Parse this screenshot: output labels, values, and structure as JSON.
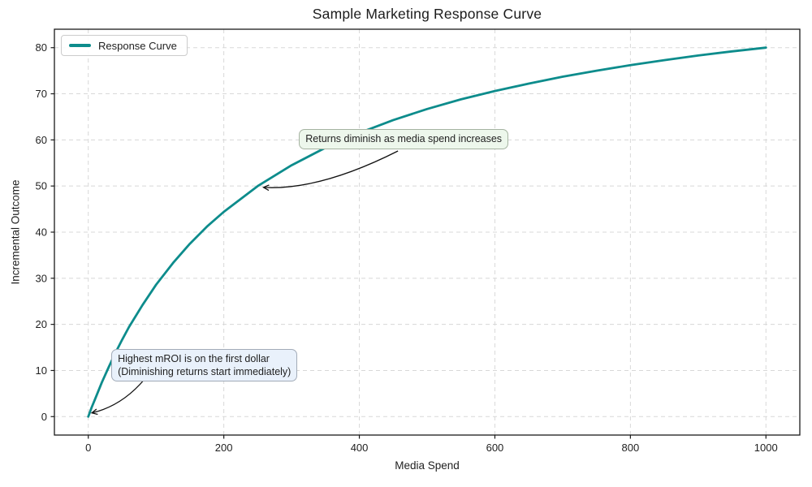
{
  "chart_data": {
    "type": "line",
    "title": "Sample Marketing Response Curve",
    "xlabel": "Media Spend",
    "ylabel": "Incremental Outcome",
    "x_ticks": [
      0,
      200,
      400,
      600,
      800,
      1000
    ],
    "y_ticks": [
      0,
      10,
      20,
      30,
      40,
      50,
      60,
      70,
      80
    ],
    "xlim": [
      -50,
      1050
    ],
    "ylim": [
      -4,
      84
    ],
    "grid": {
      "on": true,
      "style": "dashed",
      "color": "#d8d8d8"
    },
    "legend": {
      "position": "upper-left",
      "entries": [
        {
          "label": "Response Curve",
          "color": "#0d8c8c"
        }
      ]
    },
    "series": [
      {
        "name": "Response Curve",
        "color": "#0d8c8c",
        "x": [
          0,
          5,
          10,
          20,
          30,
          40,
          50,
          60,
          80,
          100,
          125,
          150,
          175,
          200,
          250,
          300,
          350,
          400,
          450,
          500,
          550,
          600,
          650,
          700,
          750,
          800,
          850,
          900,
          950,
          1000
        ],
        "y": [
          0,
          2.0,
          3.8,
          7.4,
          10.7,
          13.8,
          16.7,
          19.4,
          24.2,
          28.6,
          33.3,
          37.5,
          41.2,
          44.4,
          50.0,
          54.5,
          58.3,
          61.5,
          64.3,
          66.7,
          68.8,
          70.6,
          72.2,
          73.7,
          75.0,
          76.2,
          77.3,
          78.3,
          79.2,
          80.0
        ]
      }
    ],
    "annotations": [
      {
        "text": "Returns diminish as media spend increases",
        "target_xy": [
          250,
          50
        ],
        "box_data_xy": [
          311,
          62.3
        ],
        "bg": "#edf7ec",
        "border": "#a5b3a1",
        "arrow": {
          "start": [
            457,
            57.6
          ],
          "ctrl": [
            341,
            49.0
          ],
          "end": [
            258.5,
            49.7
          ]
        }
      },
      {
        "text": "Highest mROI is on the first dollar\n(Diminishing returns start immediately)",
        "target_xy": [
          0,
          0
        ],
        "box_data_xy": [
          34,
          14.7
        ],
        "bg": "#e9f1fb",
        "border": "#a2abb8",
        "arrow": {
          "start": [
            83,
            8.1
          ],
          "ctrl": [
            49.5,
            2.3
          ],
          "end": [
            5.2,
            0.8
          ]
        }
      }
    ],
    "colors": {
      "curve": "#0d8c8c",
      "grid": "#d8d8d8",
      "spine": "#1a1a1a",
      "arrow": "#111111",
      "text": "#1f1f1f"
    }
  }
}
